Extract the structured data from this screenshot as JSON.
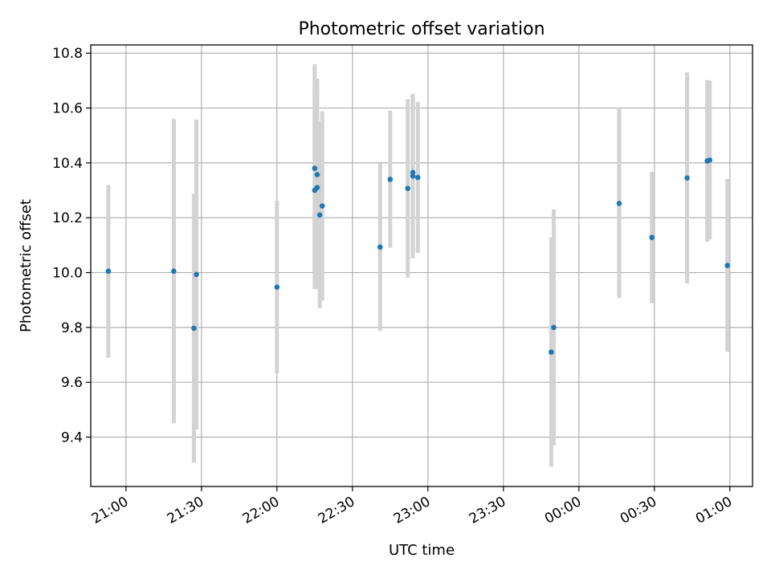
{
  "chart_data": {
    "type": "scatter",
    "title": "Photometric offset variation",
    "xlabel": "UTC time",
    "ylabel": "Photometric offset",
    "grid": true,
    "ylim": [
      9.22,
      10.83
    ],
    "xlim": [
      "20:46",
      "01:09"
    ],
    "x_tick_labels": [
      "21:00",
      "21:30",
      "22:00",
      "22:30",
      "23:00",
      "23:30",
      "00:00",
      "00:30",
      "01:00"
    ],
    "y_tick_labels": [
      "9.4",
      "9.6",
      "9.8",
      "10.0",
      "10.2",
      "10.4",
      "10.6",
      "10.8"
    ],
    "point_color": "#1f77b4",
    "errorbar_color": "#d3d3d3",
    "points": [
      {
        "time": "20:53",
        "y": 10.005,
        "err": 0.315
      },
      {
        "time": "21:19",
        "y": 10.005,
        "err": 0.555
      },
      {
        "time": "21:27",
        "y": 9.797,
        "err": 0.49
      },
      {
        "time": "21:28",
        "y": 9.993,
        "err": 0.565
      },
      {
        "time": "22:00",
        "y": 9.947,
        "err": 0.315
      },
      {
        "time": "22:15",
        "y": 10.38,
        "err": 0.38
      },
      {
        "time": "22:15",
        "y": 10.3,
        "err": 0.36
      },
      {
        "time": "22:16",
        "y": 10.357,
        "err": 0.35
      },
      {
        "time": "22:16",
        "y": 10.31,
        "err": 0.37
      },
      {
        "time": "22:17",
        "y": 10.21,
        "err": 0.34
      },
      {
        "time": "22:18",
        "y": 10.243,
        "err": 0.345
      },
      {
        "time": "22:41",
        "y": 10.093,
        "err": 0.305
      },
      {
        "time": "22:45",
        "y": 10.34,
        "err": 0.25
      },
      {
        "time": "22:52",
        "y": 10.307,
        "err": 0.325
      },
      {
        "time": "22:54",
        "y": 10.352,
        "err": 0.3
      },
      {
        "time": "22:54",
        "y": 10.365,
        "err": 0.285
      },
      {
        "time": "22:56",
        "y": 10.347,
        "err": 0.275
      },
      {
        "time": "23:49",
        "y": 9.71,
        "err": 0.418
      },
      {
        "time": "23:50",
        "y": 9.8,
        "err": 0.43
      },
      {
        "time": "00:16",
        "y": 10.252,
        "err": 0.345
      },
      {
        "time": "00:29",
        "y": 10.128,
        "err": 0.24
      },
      {
        "time": "00:43",
        "y": 10.345,
        "err": 0.385
      },
      {
        "time": "00:51",
        "y": 10.407,
        "err": 0.295
      },
      {
        "time": "00:52",
        "y": 10.41,
        "err": 0.29
      },
      {
        "time": "00:59",
        "y": 10.026,
        "err": 0.315
      }
    ]
  }
}
